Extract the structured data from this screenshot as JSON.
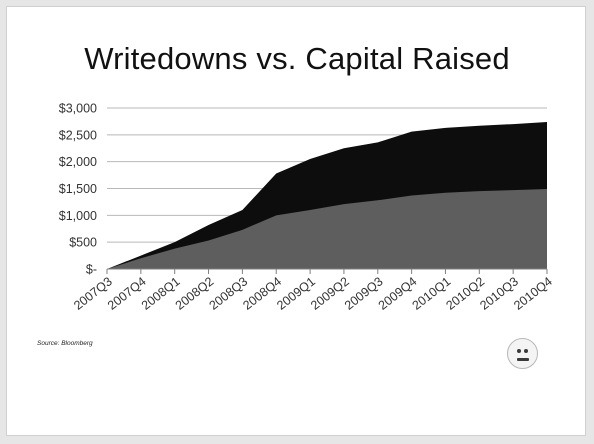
{
  "slide": {
    "title": "Writedowns vs. Capital Raised",
    "source": "Source: Bloomberg"
  },
  "chart_data": {
    "type": "area",
    "title": "",
    "xlabel": "",
    "ylabel": "",
    "categories": [
      "2007Q3",
      "2007Q4",
      "2008Q1",
      "2008Q2",
      "2008Q3",
      "2008Q4",
      "2009Q1",
      "2009Q2",
      "2009Q3",
      "2009Q4",
      "2010Q1",
      "2010Q2",
      "2010Q3",
      "2010Q4"
    ],
    "ylim": [
      0,
      3000
    ],
    "yticks": [
      0,
      500,
      1000,
      1500,
      2000,
      2500,
      3000
    ],
    "ytick_labels": [
      "$-",
      "$500",
      "$1,000",
      "$1,500",
      "$2,000",
      "$2,500",
      "$3,000"
    ],
    "grid": true,
    "legend": "none",
    "series": [
      {
        "values": [
          0,
          250,
          500,
          820,
          1100,
          1780,
          2050,
          2250,
          2360,
          2560,
          2630,
          2670,
          2700,
          2740
        ],
        "color": "#0d0d0d"
      },
      {
        "values": [
          0,
          200,
          380,
          530,
          730,
          1000,
          1100,
          1210,
          1280,
          1370,
          1420,
          1450,
          1470,
          1490
        ],
        "color": "#5e5e5e"
      }
    ]
  },
  "colors": {
    "grid": "#b8b8b8",
    "axis": "#7f7f7f",
    "background": "#ffffff"
  },
  "icons": {
    "status_face": "neutral-face-icon"
  }
}
